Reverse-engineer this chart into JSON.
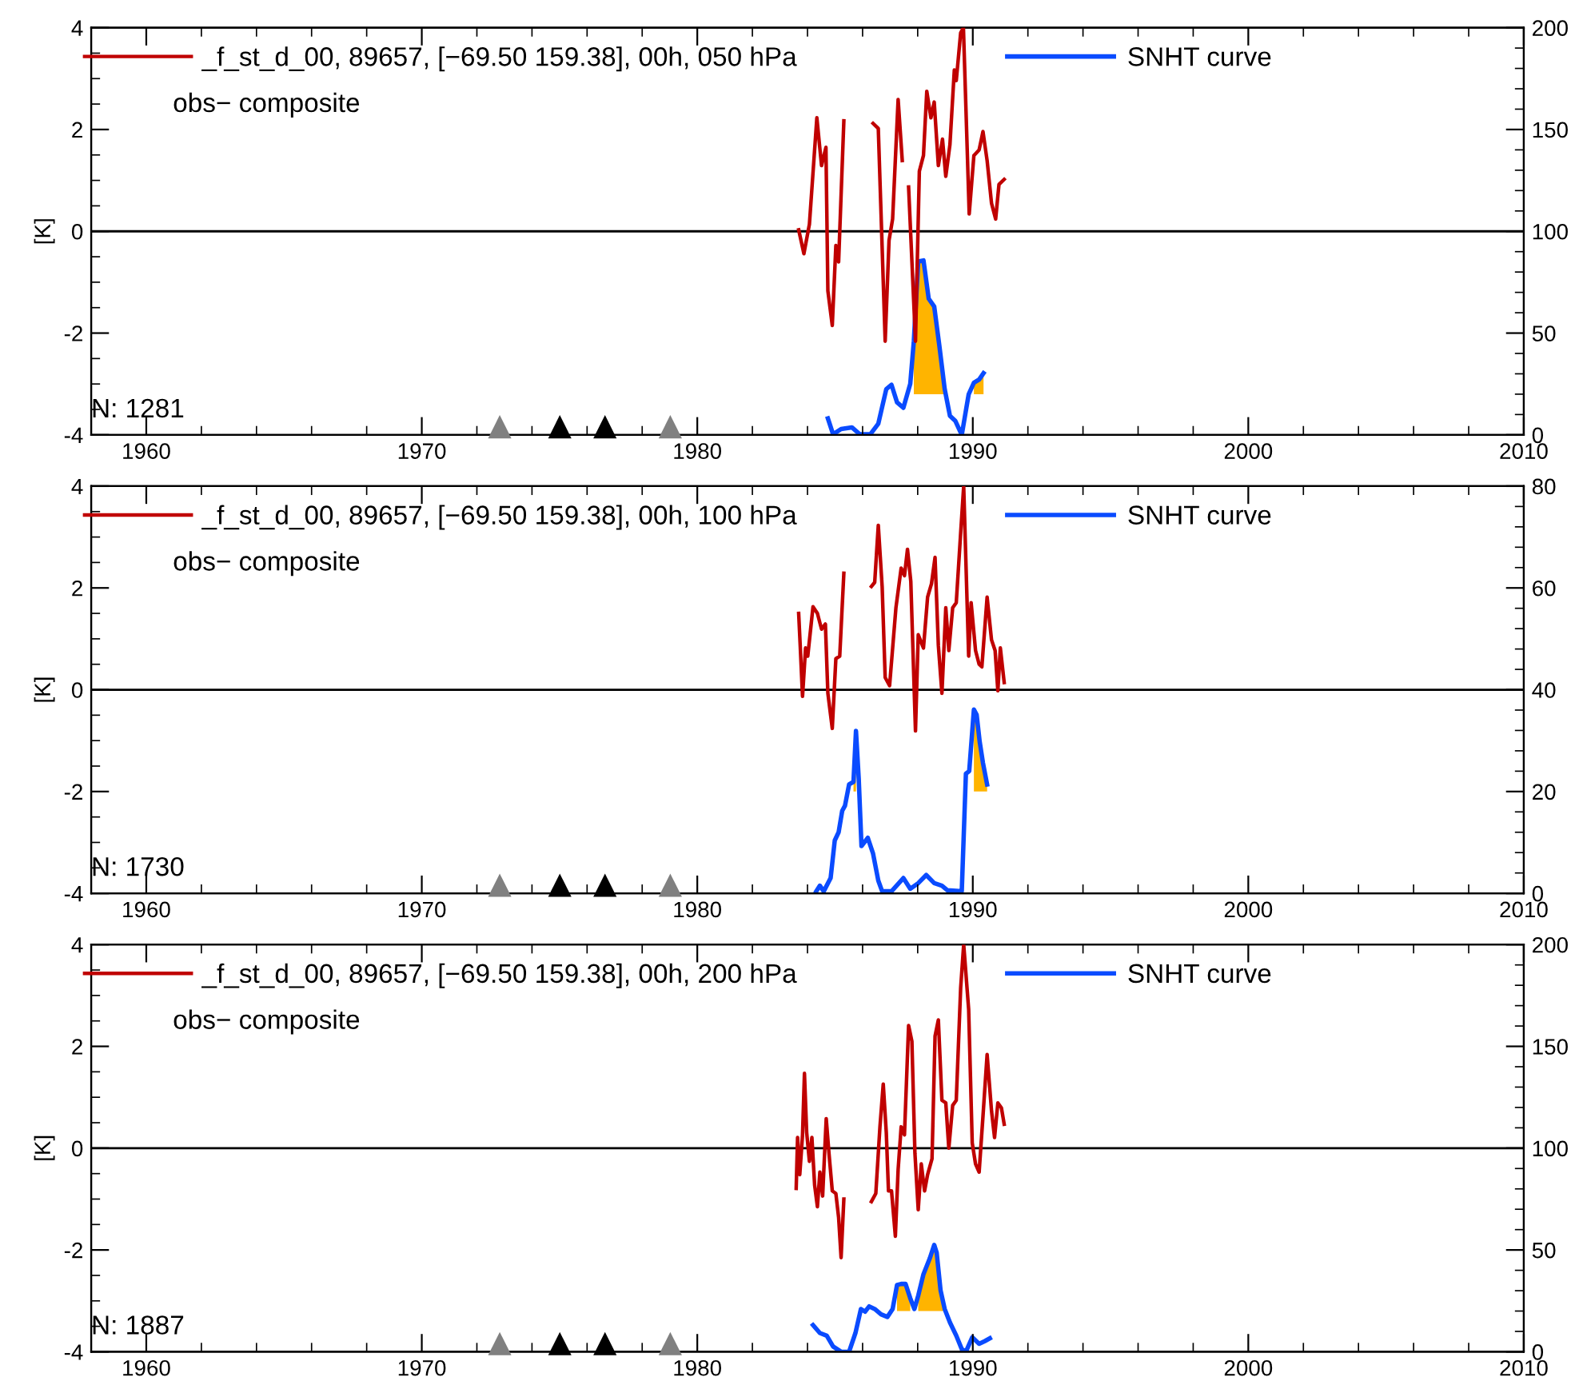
{
  "chart_data": [
    {
      "type": "line",
      "ylabel": "[K]",
      "xlim": [
        1958,
        2010
      ],
      "xticks": [
        1960,
        1970,
        1980,
        1990,
        2000,
        2010
      ],
      "ylim": [
        -4,
        4
      ],
      "yticks": [
        -4,
        -2,
        0,
        2,
        4
      ],
      "y2lim": [
        0,
        200
      ],
      "y2ticks": [
        0,
        50,
        100,
        150,
        200
      ],
      "legend": "top",
      "ref_lines": [
        {
          "axis": "y",
          "value": 0,
          "color": "#000000"
        }
      ],
      "annotations": [
        "obs− composite",
        "N: 1281"
      ],
      "series": [
        {
          "name": "_f_st_d_00, 89657, [−69.50 159.38], 00h, 050 hPa",
          "color": "#c00000",
          "x": [
            1983.68,
            1983.87,
            1984.07,
            1984.34,
            1984.51,
            1984.67,
            1984.74,
            1984.9,
            1985.03,
            1985.13,
            1985.32,
            1985.6,
            1986.38,
            1986.57,
            1986.82,
            1986.96,
            1987.09,
            1987.29,
            1987.44,
            1987.55,
            1987.67,
            1987.92,
            1988.06,
            1988.21,
            1988.33,
            1988.48,
            1988.6,
            1988.75,
            1988.9,
            1989.02,
            1989.17,
            1989.33,
            1989.4,
            1989.56,
            1989.66,
            1989.87,
            1990.04,
            1990.23,
            1990.37,
            1990.52,
            1990.68,
            1990.83,
            1990.95,
            1991.14
          ],
          "values": [
            0.03,
            -0.44,
            0.14,
            2.23,
            1.29,
            1.65,
            -1.17,
            -1.85,
            -0.28,
            -0.6,
            2.17,
            null,
            2.12,
            2.02,
            -2.16,
            -0.18,
            0.24,
            2.59,
            1.39,
            null,
            0.87,
            -2.16,
            1.18,
            1.49,
            2.75,
            2.23,
            2.54,
            1.29,
            1.81,
            1.08,
            1.7,
            3.17,
            2.96,
            3.9,
            4.0,
            0.34,
            1.49,
            1.6,
            1.96,
            1.39,
            0.55,
            0.24,
            0.92,
            1.02
          ]
        },
        {
          "name": "SNHT curve",
          "color": "#0a4bff",
          "axis": "y2",
          "x": [
            1984.74,
            1984.93,
            1985.22,
            1985.61,
            1985.9,
            1986.28,
            1986.57,
            1986.86,
            1987.05,
            1987.25,
            1987.48,
            1987.73,
            1987.86,
            1988.02,
            1988.21,
            1988.4,
            1988.6,
            1988.79,
            1988.98,
            1989.17,
            1989.37,
            1989.6,
            1989.85,
            1990.04,
            1990.23,
            1990.39
          ],
          "values": [
            8.1,
            0.3,
            2.9,
            3.7,
            0.3,
            0.3,
            5.5,
            22.5,
            24.6,
            16,
            13.3,
            25.1,
            46,
            85.2,
            85.7,
            66.9,
            63,
            43.4,
            22.5,
            9.4,
            6.8,
            0,
            19.9,
            25.6,
            27.2,
            30.3
          ],
          "lower": [
            null,
            null,
            null,
            null,
            null,
            null,
            null,
            null,
            null,
            null,
            null,
            null,
            20,
            20,
            20,
            20,
            20,
            20,
            20,
            null,
            null,
            null,
            null,
            20,
            20,
            20
          ],
          "upper": [
            null,
            null,
            null,
            null,
            null,
            null,
            null,
            null,
            null,
            null,
            null,
            null,
            46,
            85.2,
            85.7,
            66.9,
            63,
            43.4,
            22.5,
            null,
            null,
            null,
            null,
            25.6,
            27.2,
            30.3
          ]
        },
        {
          "type": "scatter",
          "marker": "triangle",
          "x": [
            1972.83,
            1975.01,
            1976.65,
            1979.02
          ],
          "values": [
            -3.84,
            -3.84,
            -3.84,
            -3.84
          ],
          "colors": [
            "#808080",
            "#000000",
            "#000000",
            "#808080"
          ]
        }
      ]
    },
    {
      "type": "line",
      "ylabel": "[K]",
      "xlim": [
        1958,
        2010
      ],
      "xticks": [
        1960,
        1970,
        1980,
        1990,
        2000,
        2010
      ],
      "ylim": [
        -4,
        4
      ],
      "yticks": [
        -4,
        -2,
        0,
        2,
        4
      ],
      "y2lim": [
        0,
        80
      ],
      "y2ticks": [
        0,
        20,
        40,
        60,
        80
      ],
      "legend": "top",
      "ref_lines": [
        {
          "axis": "y",
          "value": 0,
          "color": "#000000"
        }
      ],
      "annotations": [
        "obs− composite",
        "N: 1730"
      ],
      "series": [
        {
          "name": "_f_st_d_00, 89657, [−69.50 159.38], 00h, 100 hPa",
          "color": "#c00000",
          "x": [
            1983.68,
            1983.74,
            1983.82,
            1983.93,
            1984.01,
            1984.2,
            1984.36,
            1984.51,
            1984.65,
            1984.74,
            1984.9,
            1985.03,
            1985.17,
            1985.32,
            1985.8,
            1986.32,
            1986.44,
            1986.57,
            1986.71,
            1986.82,
            1986.98,
            1987.21,
            1987.4,
            1987.52,
            1987.63,
            1987.75,
            1987.92,
            1988.02,
            1988.21,
            1988.36,
            1988.5,
            1988.63,
            1988.75,
            1988.88,
            1989.02,
            1989.13,
            1989.27,
            1989.4,
            1989.56,
            1989.67,
            1989.85,
            1989.94,
            1990.1,
            1990.23,
            1990.33,
            1990.52,
            1990.68,
            1990.81,
            1990.91,
            1991.0,
            1991.14
          ],
          "values": [
            1.5,
            0.82,
            -0.13,
            0.82,
            0.66,
            1.63,
            1.5,
            1.19,
            1.29,
            -0.07,
            -0.76,
            0.61,
            0.66,
            2.29,
            null,
            2.03,
            2.11,
            3.23,
            2.03,
            0.24,
            0.08,
            1.61,
            2.39,
            2.24,
            2.76,
            2.13,
            -0.81,
            1.08,
            0.82,
            1.82,
            2.08,
            2.6,
            0.87,
            -0.07,
            1.61,
            0.77,
            1.61,
            1.71,
            3.08,
            4.0,
            0.66,
            1.71,
            0.77,
            0.5,
            0.45,
            1.82,
            0.98,
            0.77,
            -0.02,
            0.82,
            0.14
          ]
        },
        {
          "name": "SNHT curve",
          "color": "#0a4bff",
          "axis": "y2",
          "x": [
            1984.32,
            1984.45,
            1984.59,
            1984.84,
            1984.99,
            1985.13,
            1985.26,
            1985.36,
            1985.51,
            1985.67,
            1985.76,
            1985.86,
            1985.96,
            1986.19,
            1986.38,
            1986.57,
            1986.71,
            1987.05,
            1987.48,
            1987.73,
            1988.02,
            1988.31,
            1988.6,
            1988.88,
            1989.08,
            1989.6,
            1989.75,
            1989.87,
            1990.04,
            1990.14,
            1990.25,
            1990.37,
            1990.52
          ],
          "values": [
            0.4,
            1.5,
            0.4,
            3.0,
            10.4,
            12.0,
            16.2,
            17.2,
            21.4,
            21.9,
            31.9,
            22.5,
            9.3,
            10.9,
            7.8,
            2.5,
            0.4,
            0.4,
            3.0,
            0.9,
            2.0,
            3.6,
            2.0,
            1.5,
            0.6,
            0.4,
            23.5,
            24,
            36.1,
            35.1,
            29.8,
            25.6,
            21.4
          ],
          "lower": [
            null,
            null,
            null,
            null,
            null,
            null,
            null,
            null,
            null,
            20,
            20,
            null,
            null,
            null,
            null,
            null,
            null,
            null,
            null,
            null,
            null,
            null,
            null,
            null,
            null,
            null,
            null,
            null,
            20,
            20,
            20,
            20,
            20
          ],
          "upper": [
            null,
            null,
            null,
            null,
            null,
            null,
            null,
            null,
            null,
            21.9,
            31.9,
            null,
            null,
            null,
            null,
            null,
            null,
            null,
            null,
            null,
            null,
            null,
            null,
            null,
            null,
            null,
            null,
            null,
            36.1,
            35.1,
            29.8,
            25.6,
            21.4
          ]
        },
        {
          "type": "scatter",
          "marker": "triangle",
          "x": [
            1972.83,
            1975.01,
            1976.65,
            1979.02
          ],
          "values": [
            -3.84,
            -3.84,
            -3.84,
            -3.84
          ],
          "colors": [
            "#808080",
            "#000000",
            "#000000",
            "#808080"
          ]
        }
      ]
    },
    {
      "type": "line",
      "ylabel": "[K]",
      "xlim": [
        1958,
        2010
      ],
      "xticks": [
        1960,
        1970,
        1980,
        1990,
        2000,
        2010
      ],
      "ylim": [
        -4,
        4
      ],
      "yticks": [
        -4,
        -2,
        0,
        2,
        4
      ],
      "y2lim": [
        0,
        200
      ],
      "y2ticks": [
        0,
        50,
        100,
        150,
        200
      ],
      "legend": "top",
      "ref_lines": [
        {
          "axis": "y",
          "value": 0,
          "color": "#000000"
        }
      ],
      "annotations": [
        "obs− composite",
        "N: 1887"
      ],
      "series": [
        {
          "name": "_f_st_d_00, 89657, [−69.50 159.38], 00h, 200 hPa",
          "color": "#c00000",
          "x": [
            1983.59,
            1983.64,
            1983.72,
            1983.82,
            1983.89,
            1983.97,
            1984.07,
            1984.16,
            1984.26,
            1984.36,
            1984.45,
            1984.55,
            1984.68,
            1984.78,
            1984.9,
            1985.03,
            1985.13,
            1985.22,
            1985.32,
            1985.8,
            1986.32,
            1986.48,
            1986.63,
            1986.75,
            1986.86,
            1986.94,
            1987.05,
            1987.19,
            1987.29,
            1987.4,
            1987.52,
            1987.67,
            1987.79,
            1987.9,
            1988.02,
            1988.13,
            1988.25,
            1988.36,
            1988.52,
            1988.63,
            1988.75,
            1988.88,
            1989.02,
            1989.13,
            1989.27,
            1989.4,
            1989.56,
            1989.67,
            1989.85,
            1989.98,
            1990.1,
            1990.23,
            1990.37,
            1990.52,
            1990.68,
            1990.79,
            1990.91,
            1991.04,
            1991.14
          ],
          "values": [
            -0.79,
            0.21,
            -0.52,
            0.26,
            1.47,
            0.31,
            -0.26,
            0.21,
            -0.73,
            -1.15,
            -0.47,
            -0.94,
            0.58,
            -0.1,
            -0.84,
            -0.89,
            -1.36,
            -2.15,
            -1.0,
            null,
            -1.05,
            -0.89,
            0.42,
            1.26,
            0.31,
            -0.84,
            -0.84,
            -1.73,
            -0.42,
            0.42,
            0.26,
            2.41,
            2.1,
            -0.1,
            -1.21,
            -0.31,
            -0.84,
            -0.52,
            -0.21,
            2.2,
            2.52,
            0.94,
            0.89,
            0,
            0.84,
            0.94,
            3.15,
            4.0,
            2.73,
            0.1,
            -0.31,
            -0.47,
            0.63,
            1.84,
            0.73,
            0.21,
            0.89,
            0.79,
            0.47
          ]
        },
        {
          "name": "SNHT curve",
          "color": "#0a4bff",
          "axis": "y2",
          "x": [
            1984.2,
            1984.45,
            1984.7,
            1984.93,
            1985.22,
            1985.51,
            1985.74,
            1985.94,
            1986.09,
            1986.24,
            1986.44,
            1986.67,
            1986.9,
            1987.09,
            1987.25,
            1987.4,
            1987.56,
            1987.73,
            1987.88,
            1988.02,
            1988.21,
            1988.44,
            1988.6,
            1988.69,
            1988.83,
            1988.98,
            1989.17,
            1989.4,
            1989.6,
            1989.75,
            1989.98,
            1990.23,
            1990.43,
            1990.62
          ],
          "values": [
            13.1,
            9.2,
            7.9,
            2.6,
            0,
            0,
            9.2,
            21,
            19.7,
            22.3,
            21,
            18.4,
            17.1,
            21,
            32.8,
            33.3,
            33.3,
            26.3,
            21,
            27.6,
            38.1,
            45.9,
            52.5,
            48.6,
            30.2,
            21,
            14.4,
            7.9,
            1.3,
            0,
            7.1,
            3.9,
            5.2,
            6.6
          ],
          "lower": [
            null,
            null,
            null,
            null,
            null,
            null,
            null,
            null,
            null,
            null,
            null,
            null,
            null,
            null,
            20,
            20,
            20,
            20,
            null,
            20,
            20,
            20,
            20,
            20,
            20,
            20,
            null,
            null,
            null,
            null,
            null,
            null,
            null,
            null
          ],
          "upper": [
            null,
            null,
            null,
            null,
            null,
            null,
            null,
            null,
            null,
            null,
            null,
            null,
            null,
            null,
            32.8,
            33.3,
            33.3,
            26.3,
            null,
            27.6,
            38.1,
            45.9,
            52.5,
            48.6,
            30.2,
            21,
            null,
            null,
            null,
            null,
            null,
            null,
            null,
            null
          ]
        },
        {
          "type": "scatter",
          "marker": "triangle",
          "x": [
            1972.83,
            1975.01,
            1976.65,
            1979.02
          ],
          "values": [
            -3.84,
            -3.84,
            -3.84,
            -3.84
          ],
          "colors": [
            "#808080",
            "#000000",
            "#000000",
            "#808080"
          ]
        }
      ]
    }
  ]
}
